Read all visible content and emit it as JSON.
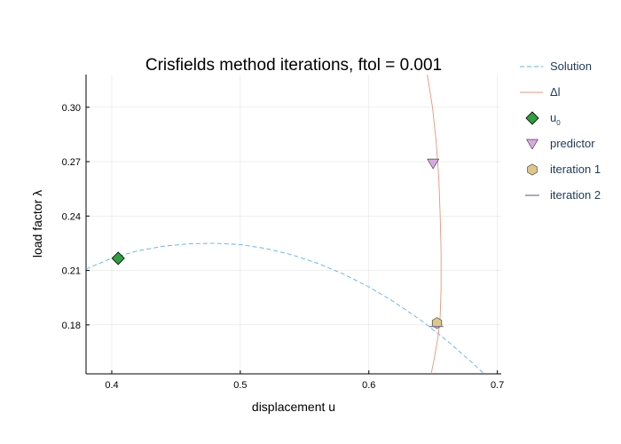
{
  "chart_data": {
    "type": "line",
    "title": "Crisfields method iterations, ftol = 0.001",
    "xlabel": "displacement u",
    "ylabel": "load factor λ",
    "xlim": [
      0.38,
      0.703
    ],
    "ylim": [
      0.153,
      0.318
    ],
    "xticks": [
      0.4,
      0.5,
      0.6,
      0.7
    ],
    "yticks": [
      0.18,
      0.21,
      0.24,
      0.27,
      0.3
    ],
    "xtick_labels": [
      "0.4",
      "0.5",
      "0.6",
      "0.7"
    ],
    "ytick_labels": [
      "0.18",
      "0.21",
      "0.24",
      "0.27",
      "0.30"
    ],
    "grid": true,
    "legend_position": "right",
    "series": [
      {
        "name": "Solution",
        "style": "dashed-line",
        "color": "#5ab4e8",
        "x": [
          0.38,
          0.4,
          0.42,
          0.44,
          0.46,
          0.48,
          0.5,
          0.52,
          0.54,
          0.56,
          0.58,
          0.6,
          0.62,
          0.64,
          0.66,
          0.68,
          0.695
        ],
        "y": [
          0.2108,
          0.2168,
          0.2208,
          0.2234,
          0.2247,
          0.225,
          0.2243,
          0.2221,
          0.2187,
          0.214,
          0.2081,
          0.201,
          0.1925,
          0.1828,
          0.1718,
          0.1594,
          0.1495
        ]
      },
      {
        "name": "Δl",
        "style": "line",
        "color": "#e8957a",
        "x": [
          0.6455,
          0.6495,
          0.6525,
          0.6545,
          0.6555,
          0.6562,
          0.6562,
          0.6555,
          0.6542,
          0.6525,
          0.6505,
          0.6485
        ],
        "y": [
          0.318,
          0.3,
          0.28,
          0.26,
          0.24,
          0.22,
          0.2,
          0.185,
          0.175,
          0.168,
          0.16,
          0.153
        ]
      },
      {
        "name": "u",
        "name_subscript": "0",
        "style": "marker-diamond",
        "color": "#2e9e3f",
        "x": [
          0.405
        ],
        "y": [
          0.2167
        ]
      },
      {
        "name": "predictor",
        "style": "marker-triangle-down",
        "color": "#d8a8e0",
        "x": [
          0.65
        ],
        "y": [
          0.269
        ]
      },
      {
        "name": "iteration 1",
        "style": "marker-hexagon",
        "color": "#dcc68a",
        "x": [
          0.653
        ],
        "y": [
          0.181
        ]
      },
      {
        "name": "iteration 2",
        "style": "marker-hline",
        "color": "#7a6aa8",
        "x": [
          0.6525
        ],
        "y": [
          0.1791
        ]
      }
    ]
  }
}
